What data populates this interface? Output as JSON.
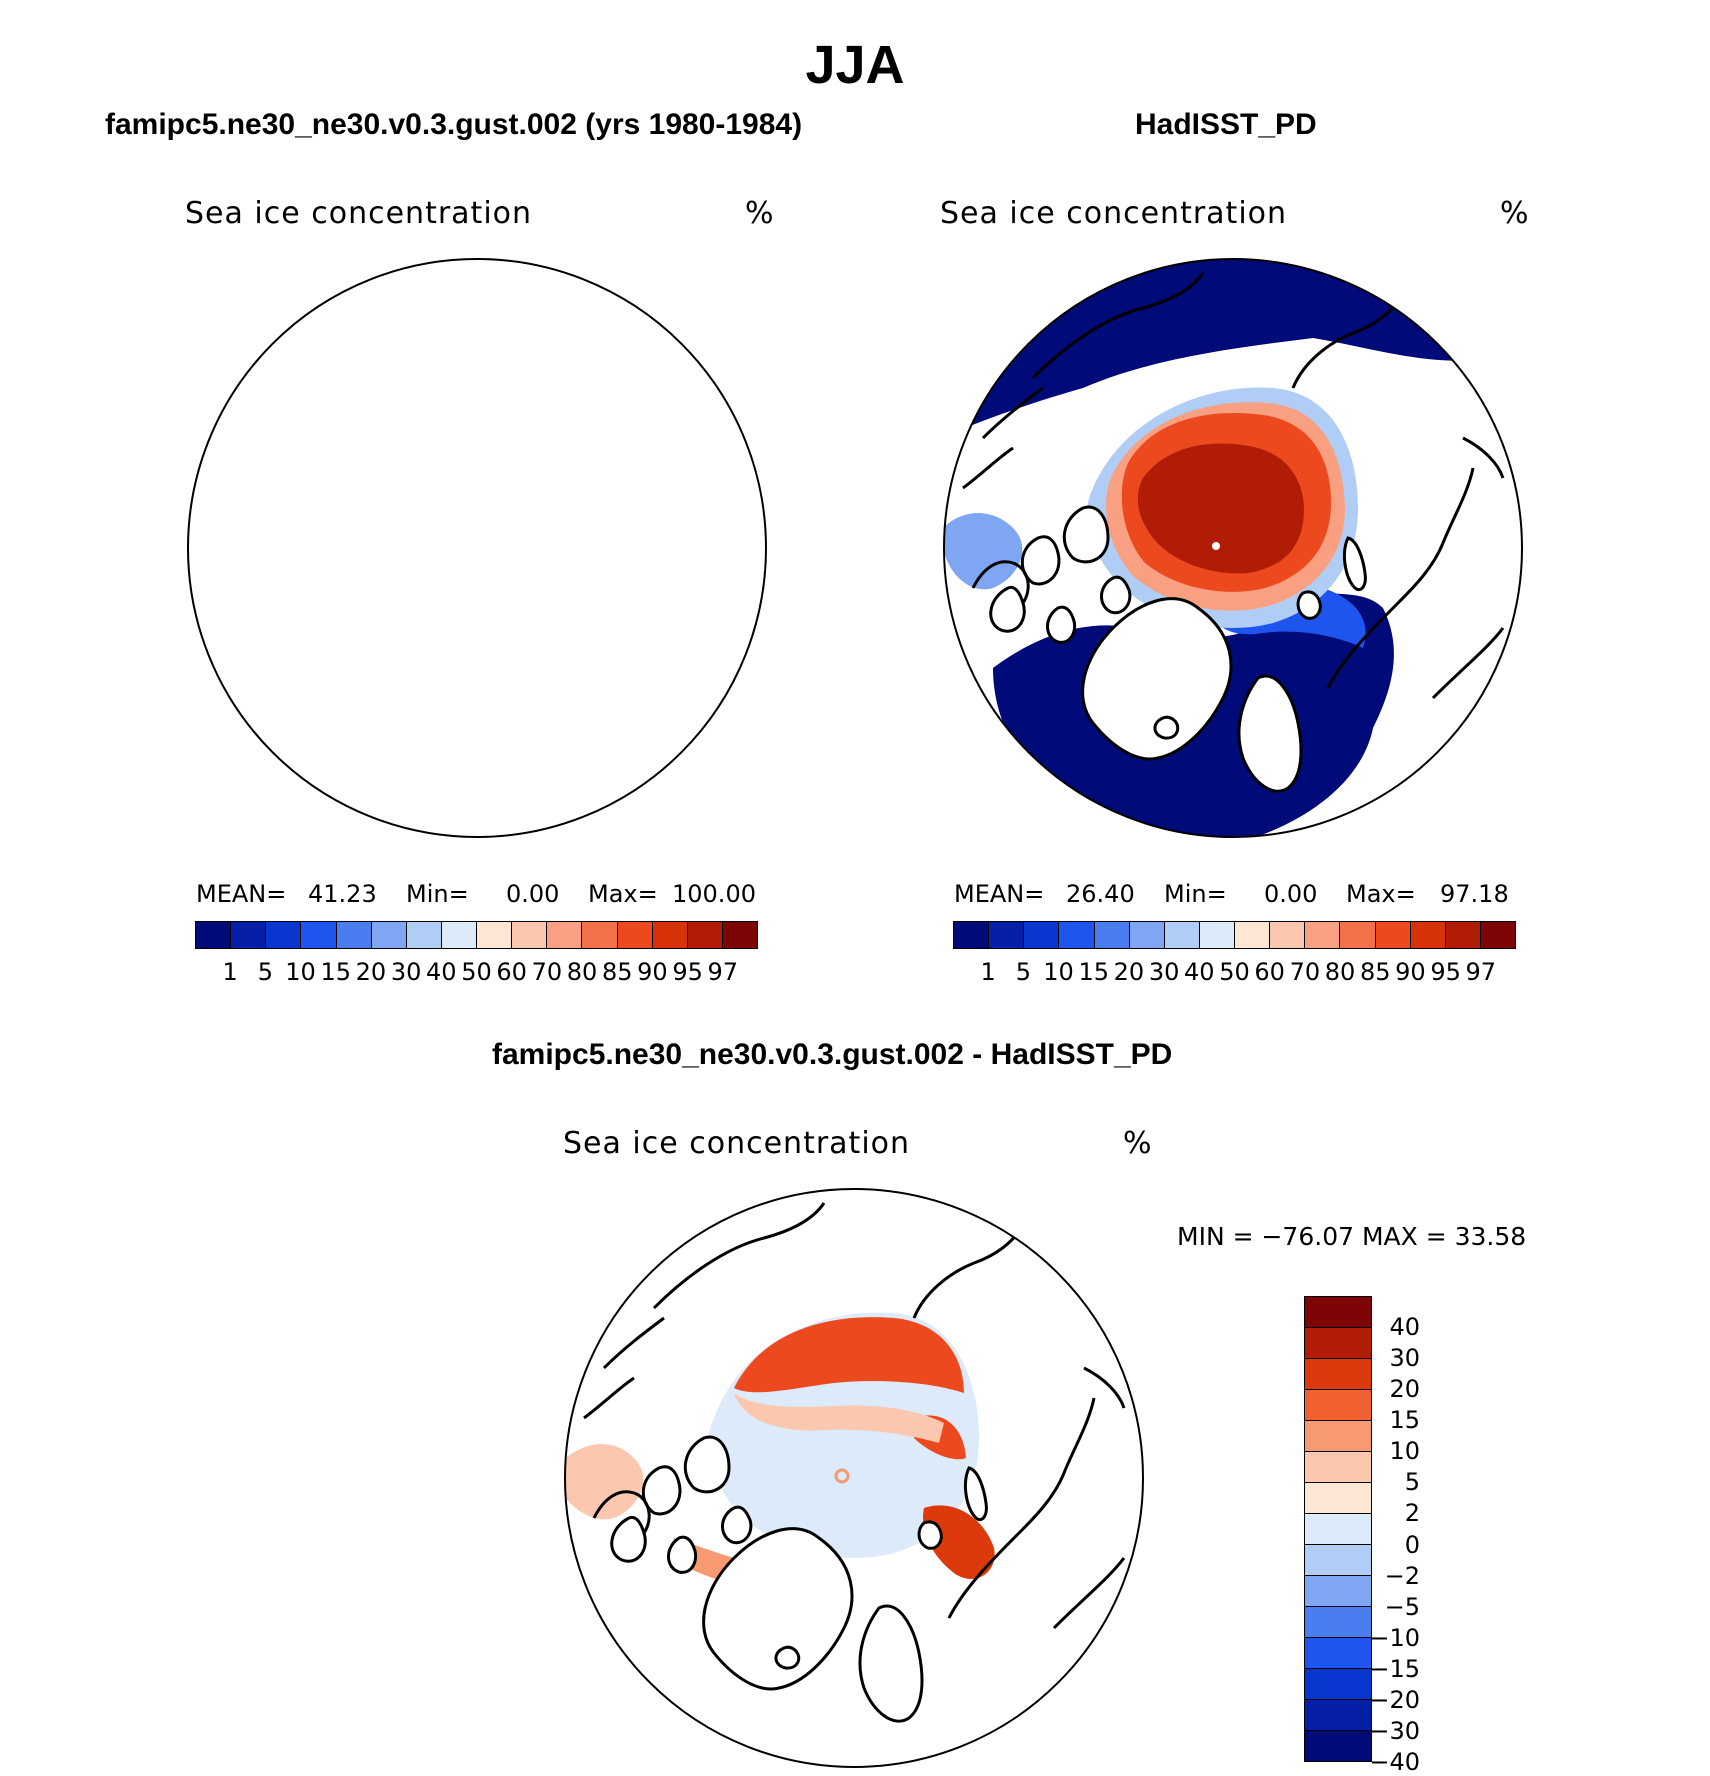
{
  "title": "JJA",
  "panels": [
    {
      "case_title": "famipc5.ne30_ne30.v0.3.gust.002 (yrs 1980-1984)",
      "variable": "Sea ice concentration",
      "units": "%",
      "stats": {
        "mean_label": "MEAN=",
        "mean": "41.23",
        "min_label": "Min=",
        "min": "0.00",
        "max_label": "Max=",
        "max": "100.00"
      }
    },
    {
      "case_title": "HadISST_PD",
      "variable": "Sea ice concentration",
      "units": "%",
      "stats": {
        "mean_label": "MEAN=",
        "mean": "26.40",
        "min_label": "Min=",
        "min": "0.00",
        "max_label": "Max=",
        "max": "97.18"
      }
    },
    {
      "case_title": "famipc5.ne30_ne30.v0.3.gust.002 - HadISST_PD",
      "variable": "Sea ice concentration",
      "units": "%",
      "minmax": "MIN = −76.07  MAX =   33.58"
    }
  ],
  "colorbar_abs": {
    "colors": [
      "#000a78",
      "#0520a6",
      "#0a36d0",
      "#1e55ee",
      "#4a7ef0",
      "#7ea6f2",
      "#b0cdf6",
      "#dceafa",
      "#fde6d4",
      "#fbc7ae",
      "#f8a081",
      "#f27149",
      "#ec4a1e",
      "#d83208",
      "#b01c06",
      "#7d0505"
    ],
    "tick_labels": [
      "1",
      "5",
      "10",
      "15",
      "20",
      "30",
      "40",
      "50",
      "60",
      "70",
      "80",
      "85",
      "90",
      "95",
      "97"
    ]
  },
  "colorbar_diff": {
    "colors": [
      "#7d0505",
      "#b01c06",
      "#dc3a0c",
      "#f06030",
      "#f79a72",
      "#fbc7ae",
      "#fde6d4",
      "#dceafa",
      "#b0cdf6",
      "#7ea6f2",
      "#4a7ef0",
      "#1e55ee",
      "#0a36d0",
      "#0520a6",
      "#000a78"
    ],
    "tick_labels": [
      "40",
      "30",
      "20",
      "15",
      "10",
      "5",
      "2",
      "0",
      "−2",
      "−5",
      "−10",
      "−15",
      "−20",
      "−30",
      "−40"
    ]
  }
}
